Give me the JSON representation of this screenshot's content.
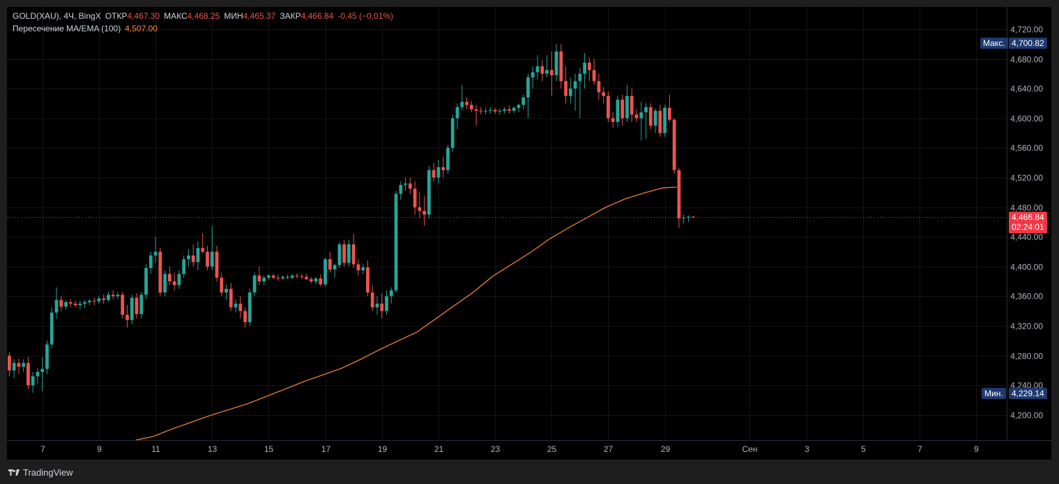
{
  "legend": {
    "symbol": "GOLD(XAU), 4Ч, BingX",
    "open_label": "ОТКР",
    "open_value": "4,467.30",
    "high_label": "МАКС",
    "high_value": "4,468.25",
    "low_label": "МИН",
    "low_value": "4,465.37",
    "close_label": "ЗАКР",
    "close_value": "4,466.84",
    "change": "-0.45 (−0,01%)",
    "indicator_name": "Пересечение MA/EMA (100)",
    "indicator_value": "4,507.00"
  },
  "badges": {
    "max_label": "Макс.",
    "max_value": "4,700.82",
    "min_label": "Мин.",
    "min_value": "4,229.14",
    "last_price": "4,466.84",
    "countdown": "02:24:01"
  },
  "colors": {
    "up": "#26a69a",
    "down": "#ef5350",
    "ma": "#ff8a3d",
    "badge_bg": "#1e3a6e",
    "last_badge": "#f23645",
    "grid": "#151515",
    "axis_text": "#b2b5be"
  },
  "footer": {
    "brand": "TradingView",
    "logo_icon": "tradingview-logo-icon"
  },
  "chart_data": {
    "type": "candlestick",
    "interval": "4h",
    "y_ticks": [
      4200,
      4240,
      4280,
      4320,
      4360,
      4400,
      4440,
      4480,
      4520,
      4560,
      4600,
      4640,
      4680,
      4720
    ],
    "y_tick_labels": [
      "4,200.00",
      "4,240.00",
      "4,280.00",
      "4,320.00",
      "4,360.00",
      "4,400.00",
      "4,440.00",
      "4,480.00",
      "4,520.00",
      "4,560.00",
      "4,600.00",
      "4,640.00",
      "4,680.00",
      "4,720.00"
    ],
    "ylim": [
      4166,
      4750
    ],
    "x_ticks": [
      {
        "label": "7",
        "bar": 7.5
      },
      {
        "label": "9",
        "bar": 19.5
      },
      {
        "label": "11",
        "bar": 31.5
      },
      {
        "label": "13",
        "bar": 43.5
      },
      {
        "label": "15",
        "bar": 55.5
      },
      {
        "label": "17",
        "bar": 67.5
      },
      {
        "label": "19",
        "bar": 79.5
      },
      {
        "label": "21",
        "bar": 91.5
      },
      {
        "label": "23",
        "bar": 103.5
      },
      {
        "label": "25",
        "bar": 115.5
      },
      {
        "label": "27",
        "bar": 127.5
      },
      {
        "label": "29",
        "bar": 139.5
      },
      {
        "label": "Сен",
        "bar": 157.5
      },
      {
        "label": "3",
        "bar": 169.5
      },
      {
        "label": "5",
        "bar": 181.5
      },
      {
        "label": "7",
        "bar": 193.5
      },
      {
        "label": "9",
        "bar": 205.5
      }
    ],
    "x_range_bars": [
      0,
      212
    ],
    "candles": [
      [
        4280,
        4285,
        4252,
        4260
      ],
      [
        4260,
        4275,
        4250,
        4270
      ],
      [
        4270,
        4276,
        4255,
        4265
      ],
      [
        4265,
        4275,
        4258,
        4270
      ],
      [
        4270,
        4278,
        4235,
        4240
      ],
      [
        4240,
        4258,
        4230,
        4252
      ],
      [
        4252,
        4263,
        4242,
        4258
      ],
      [
        4258,
        4278,
        4232,
        4262
      ],
      [
        4262,
        4300,
        4255,
        4295
      ],
      [
        4295,
        4345,
        4290,
        4338
      ],
      [
        4338,
        4372,
        4330,
        4355
      ],
      [
        4355,
        4360,
        4340,
        4346
      ],
      [
        4346,
        4355,
        4342,
        4352
      ],
      [
        4352,
        4356,
        4345,
        4350
      ],
      [
        4350,
        4354,
        4345,
        4348
      ],
      [
        4348,
        4354,
        4342,
        4350
      ],
      [
        4350,
        4355,
        4344,
        4352
      ],
      [
        4352,
        4356,
        4348,
        4354
      ],
      [
        4354,
        4358,
        4348,
        4353
      ],
      [
        4353,
        4360,
        4350,
        4357
      ],
      [
        4357,
        4362,
        4350,
        4355
      ],
      [
        4355,
        4366,
        4352,
        4362
      ],
      [
        4362,
        4368,
        4356,
        4360
      ],
      [
        4360,
        4366,
        4356,
        4362
      ],
      [
        4362,
        4366,
        4330,
        4335
      ],
      [
        4335,
        4348,
        4318,
        4328
      ],
      [
        4328,
        4362,
        4322,
        4358
      ],
      [
        4358,
        4364,
        4330,
        4336
      ],
      [
        4336,
        4366,
        4330,
        4362
      ],
      [
        4362,
        4403,
        4356,
        4398
      ],
      [
        4398,
        4420,
        4390,
        4415
      ],
      [
        4415,
        4440,
        4405,
        4420
      ],
      [
        4420,
        4425,
        4360,
        4365
      ],
      [
        4365,
        4395,
        4360,
        4390
      ],
      [
        4390,
        4400,
        4375,
        4380
      ],
      [
        4380,
        4392,
        4368,
        4375
      ],
      [
        4375,
        4395,
        4370,
        4390
      ],
      [
        4390,
        4415,
        4385,
        4410
      ],
      [
        4410,
        4424,
        4400,
        4415
      ],
      [
        4415,
        4430,
        4400,
        4406
      ],
      [
        4406,
        4434,
        4395,
        4425
      ],
      [
        4425,
        4445,
        4418,
        4420
      ],
      [
        4420,
        4428,
        4395,
        4400
      ],
      [
        4400,
        4455,
        4395,
        4420
      ],
      [
        4420,
        4428,
        4380,
        4385
      ],
      [
        4385,
        4392,
        4360,
        4365
      ],
      [
        4365,
        4376,
        4355,
        4370
      ],
      [
        4370,
        4378,
        4340,
        4345
      ],
      [
        4345,
        4356,
        4338,
        4350
      ],
      [
        4350,
        4360,
        4330,
        4340
      ],
      [
        4340,
        4345,
        4318,
        4325
      ],
      [
        4325,
        4370,
        4320,
        4365
      ],
      [
        4365,
        4392,
        4360,
        4388
      ],
      [
        4388,
        4400,
        4375,
        4380
      ],
      [
        4380,
        4388,
        4375,
        4385
      ],
      [
        4385,
        4390,
        4382,
        4388
      ],
      [
        4388,
        4390,
        4383,
        4385
      ],
      [
        4385,
        4389,
        4381,
        4384
      ],
      [
        4384,
        4388,
        4382,
        4386
      ],
      [
        4386,
        4389,
        4383,
        4385
      ],
      [
        4385,
        4390,
        4383,
        4388
      ],
      [
        4388,
        4391,
        4384,
        4387
      ],
      [
        4387,
        4390,
        4383,
        4386
      ],
      [
        4386,
        4390,
        4382,
        4383
      ],
      [
        4383,
        4386,
        4377,
        4380
      ],
      [
        4380,
        4386,
        4376,
        4384
      ],
      [
        4384,
        4390,
        4373,
        4376
      ],
      [
        4376,
        4412,
        4373,
        4410
      ],
      [
        4410,
        4420,
        4392,
        4396
      ],
      [
        4396,
        4404,
        4385,
        4402
      ],
      [
        4402,
        4433,
        4398,
        4430
      ],
      [
        4430,
        4436,
        4400,
        4405
      ],
      [
        4405,
        4436,
        4400,
        4430
      ],
      [
        4430,
        4444,
        4398,
        4403
      ],
      [
        4403,
        4410,
        4388,
        4395
      ],
      [
        4395,
        4403,
        4390,
        4399
      ],
      [
        4399,
        4408,
        4360,
        4365
      ],
      [
        4365,
        4375,
        4340,
        4345
      ],
      [
        4345,
        4360,
        4335,
        4350
      ],
      [
        4350,
        4364,
        4330,
        4340
      ],
      [
        4340,
        4368,
        4335,
        4360
      ],
      [
        4360,
        4372,
        4350,
        4368
      ],
      [
        4368,
        4502,
        4365,
        4498
      ],
      [
        4498,
        4515,
        4490,
        4510
      ],
      [
        4510,
        4520,
        4502,
        4512
      ],
      [
        4512,
        4520,
        4498,
        4505
      ],
      [
        4505,
        4515,
        4470,
        4480
      ],
      [
        4480,
        4500,
        4465,
        4475
      ],
      [
        4475,
        4495,
        4455,
        4470
      ],
      [
        4470,
        4535,
        4465,
        4530
      ],
      [
        4530,
        4540,
        4515,
        4520
      ],
      [
        4520,
        4544,
        4512,
        4534
      ],
      [
        4534,
        4548,
        4520,
        4530
      ],
      [
        4530,
        4564,
        4525,
        4560
      ],
      [
        4560,
        4605,
        4555,
        4600
      ],
      [
        4600,
        4620,
        4585,
        4615
      ],
      [
        4615,
        4645,
        4610,
        4622
      ],
      [
        4622,
        4628,
        4612,
        4618
      ],
      [
        4618,
        4623,
        4608,
        4612
      ],
      [
        4612,
        4618,
        4590,
        4610
      ],
      [
        4610,
        4615,
        4605,
        4609
      ],
      [
        4609,
        4614,
        4605,
        4610
      ],
      [
        4610,
        4615,
        4606,
        4611
      ],
      [
        4611,
        4614,
        4606,
        4609
      ],
      [
        4609,
        4613,
        4605,
        4610
      ],
      [
        4610,
        4615,
        4606,
        4612
      ],
      [
        4612,
        4617,
        4606,
        4610
      ],
      [
        4610,
        4616,
        4607,
        4614
      ],
      [
        4614,
        4620,
        4608,
        4618
      ],
      [
        4618,
        4632,
        4612,
        4628
      ],
      [
        4628,
        4660,
        4600,
        4655
      ],
      [
        4655,
        4670,
        4640,
        4662
      ],
      [
        4662,
        4685,
        4652,
        4670
      ],
      [
        4670,
        4678,
        4650,
        4660
      ],
      [
        4660,
        4685,
        4655,
        4665
      ],
      [
        4665,
        4690,
        4630,
        4658
      ],
      [
        4658,
        4700,
        4650,
        4690
      ],
      [
        4690,
        4700,
        4640,
        4650
      ],
      [
        4650,
        4670,
        4620,
        4630
      ],
      [
        4630,
        4655,
        4620,
        4640
      ],
      [
        4640,
        4660,
        4610,
        4650
      ],
      [
        4650,
        4668,
        4600,
        4660
      ],
      [
        4660,
        4688,
        4640,
        4675
      ],
      [
        4675,
        4682,
        4650,
        4665
      ],
      [
        4665,
        4680,
        4645,
        4650
      ],
      [
        4650,
        4660,
        4625,
        4635
      ],
      [
        4635,
        4642,
        4620,
        4630
      ],
      [
        4630,
        4636,
        4595,
        4600
      ],
      [
        4600,
        4608,
        4587,
        4595
      ],
      [
        4595,
        4630,
        4588,
        4625
      ],
      [
        4625,
        4632,
        4590,
        4600
      ],
      [
        4600,
        4645,
        4595,
        4630
      ],
      [
        4630,
        4640,
        4595,
        4605
      ],
      [
        4605,
        4612,
        4595,
        4600
      ],
      [
        4600,
        4622,
        4570,
        4608
      ],
      [
        4608,
        4620,
        4572,
        4615
      ],
      [
        4615,
        4620,
        4585,
        4590
      ],
      [
        4590,
        4613,
        4580,
        4610
      ],
      [
        4610,
        4618,
        4575,
        4580
      ],
      [
        4580,
        4618,
        4575,
        4614
      ],
      [
        4614,
        4632,
        4595,
        4598
      ],
      [
        4598,
        4600,
        4525,
        4530
      ],
      [
        4530,
        4533,
        4452,
        4465
      ],
      [
        4465,
        4470,
        4458,
        4466
      ],
      [
        4466,
        4469,
        4460,
        4467
      ],
      [
        4467.3,
        4468.25,
        4465.37,
        4466.84
      ]
    ],
    "ma_series": {
      "name": "Пересечение MA/EMA (100)",
      "points": [
        [
          27.3,
          4166
        ],
        [
          31,
          4171
        ],
        [
          35,
          4181
        ],
        [
          39,
          4190
        ],
        [
          43,
          4199
        ],
        [
          47,
          4207
        ],
        [
          51,
          4215
        ],
        [
          55,
          4225
        ],
        [
          59,
          4235
        ],
        [
          63,
          4245
        ],
        [
          67,
          4254
        ],
        [
          71,
          4263
        ],
        [
          75,
          4275
        ],
        [
          79,
          4288
        ],
        [
          83,
          4300
        ],
        [
          87,
          4312
        ],
        [
          91,
          4330
        ],
        [
          95,
          4348
        ],
        [
          99,
          4366
        ],
        [
          103,
          4387
        ],
        [
          107,
          4403
        ],
        [
          111,
          4419
        ],
        [
          115,
          4437
        ],
        [
          119,
          4452
        ],
        [
          123,
          4466
        ],
        [
          127,
          4480
        ],
        [
          131,
          4491
        ],
        [
          135,
          4499
        ],
        [
          139,
          4506
        ],
        [
          142,
          4507
        ]
      ]
    },
    "last_price": 4466.84,
    "max_value": 4700.82,
    "min_value": 4229.14
  }
}
